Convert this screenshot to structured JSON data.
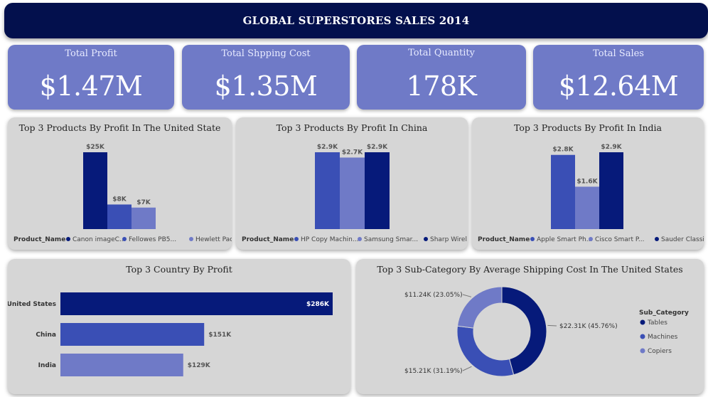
{
  "header": {
    "title": "GLOBAL SUPERSTORES SALES 2014"
  },
  "kpis": [
    {
      "label": "Total Profit",
      "value": "$1.47M"
    },
    {
      "label": "Total Shpping Cost",
      "value": "$1.35M"
    },
    {
      "label": "Total Quantity",
      "value": "178K"
    },
    {
      "label": "Total Sales",
      "value": "$12.64M"
    }
  ],
  "chart_data": [
    {
      "type": "bar",
      "title": "Top 3 Products By Profit In The United State",
      "legend_title": "Product_Name",
      "categories": [
        "Canon imageC...",
        "Fellowes PB5...",
        "Hewlett Pac..."
      ],
      "values": [
        25,
        8,
        7
      ],
      "labels": [
        "$25K",
        "$8K",
        "$7K"
      ],
      "colors": [
        "#061a7a",
        "#3a4fb5",
        "#6f7ac7"
      ],
      "ylim": [
        0,
        25
      ]
    },
    {
      "type": "bar",
      "title": "Top 3 Products By Profit In China",
      "legend_title": "Product_Name",
      "categories": [
        "HP Copy Machin...",
        "Samsung Smar...",
        "Sharp Wirel..."
      ],
      "values": [
        2.9,
        2.7,
        2.9
      ],
      "labels": [
        "$2.9K",
        "$2.7K",
        "$2.9K"
      ],
      "colors": [
        "#3a4fb5",
        "#6f7ac7",
        "#061a7a"
      ],
      "ylim": [
        0,
        2.9
      ]
    },
    {
      "type": "bar",
      "title": "Top 3 Products By Profit In India",
      "legend_title": "Product_Name",
      "categories": [
        "Apple Smart Ph...",
        "Cisco Smart P...",
        "Sauder Classi..."
      ],
      "values": [
        2.8,
        1.6,
        2.9
      ],
      "labels": [
        "$2.8K",
        "$1.6K",
        "$2.9K"
      ],
      "colors": [
        "#3a4fb5",
        "#6f7ac7",
        "#061a7a"
      ],
      "ylim": [
        0,
        2.9
      ]
    },
    {
      "type": "bar",
      "orientation": "horizontal",
      "title": "Top 3 Country By Profit",
      "categories": [
        "United States",
        "China",
        "India"
      ],
      "values": [
        286,
        151,
        129
      ],
      "labels": [
        "$286K",
        "$151K",
        "$129K"
      ],
      "colors": [
        "#061a7a",
        "#3a4fb5",
        "#6f7ac7"
      ],
      "xlim": [
        0,
        286
      ]
    },
    {
      "type": "pie",
      "variant": "donut",
      "title": "Top 3 Sub-Category By Average Shipping Cost In The United States",
      "legend_title": "Sub_Category",
      "categories": [
        "Tables",
        "Machines",
        "Copiers"
      ],
      "values": [
        45.76,
        31.19,
        23.05
      ],
      "labels": [
        "$22.31K (45.76%)",
        "$15.21K (31.19%)",
        "$11.24K (23.05%)"
      ],
      "colors": [
        "#061a7a",
        "#3a4fb5",
        "#6f7ac7"
      ],
      "legend_position": "right"
    }
  ]
}
